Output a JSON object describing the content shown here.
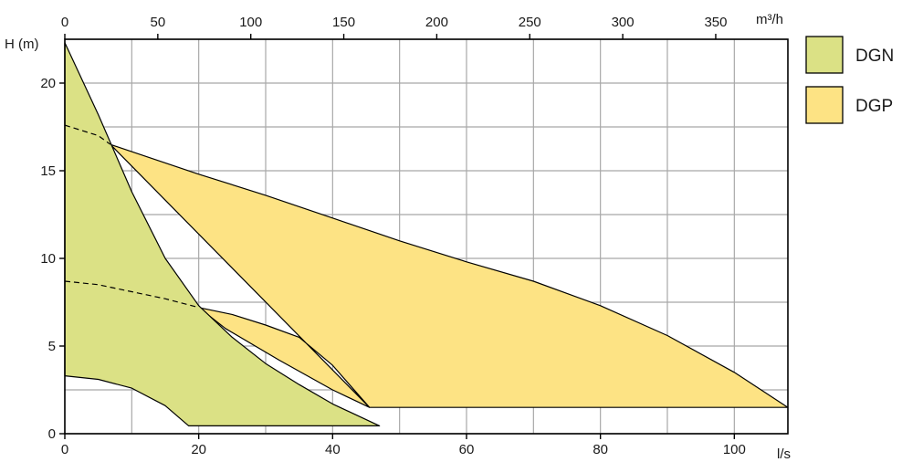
{
  "chart_data": {
    "type": "area",
    "x_bottom": {
      "label": "l/s",
      "ticks": [
        0,
        20,
        40,
        60,
        80,
        100
      ],
      "range": [
        0,
        108
      ],
      "minor_step": 10
    },
    "x_top": {
      "label": "m³/h",
      "ticks": [
        0,
        50,
        100,
        150,
        200,
        250,
        300,
        350
      ],
      "range": [
        0,
        388.8
      ]
    },
    "y": {
      "label": "H (m)",
      "ticks": [
        0,
        5,
        10,
        15,
        20
      ],
      "range": [
        0,
        22.5
      ],
      "minor_step": 2.5
    },
    "grid": true,
    "legend_position": "right",
    "series": [
      {
        "name": "DGN",
        "color": "#dbe185",
        "envelope": [
          [
            0,
            22.3
          ],
          [
            5,
            18.2
          ],
          [
            10,
            13.8
          ],
          [
            15,
            10.0
          ],
          [
            20,
            7.3
          ],
          [
            25,
            5.5
          ],
          [
            30,
            4.0
          ],
          [
            35,
            2.8
          ],
          [
            40,
            1.7
          ],
          [
            47,
            0.45
          ],
          [
            18.5,
            0.45
          ],
          [
            15,
            1.6
          ],
          [
            10,
            2.6
          ],
          [
            5,
            3.1
          ],
          [
            0,
            3.3
          ]
        ],
        "curve_dashed": [
          [
            0,
            8.7
          ],
          [
            5,
            8.5
          ],
          [
            10,
            8.1
          ],
          [
            15,
            7.7
          ],
          [
            20,
            7.2
          ]
        ]
      },
      {
        "name": "DGP",
        "color": "#fde384",
        "envelope": [
          [
            6.8,
            16.5
          ],
          [
            20,
            14.8
          ],
          [
            30,
            13.6
          ],
          [
            40,
            12.3
          ],
          [
            50,
            11.0
          ],
          [
            60,
            9.8
          ],
          [
            70,
            8.7
          ],
          [
            80,
            7.3
          ],
          [
            90,
            5.6
          ],
          [
            100,
            3.5
          ],
          [
            108,
            1.5
          ],
          [
            45.5,
            1.5
          ],
          [
            40,
            3.9
          ],
          [
            35,
            5.5
          ],
          [
            30,
            6.2
          ],
          [
            25,
            6.8
          ],
          [
            20,
            7.2
          ],
          [
            24,
            6.0
          ],
          [
            32,
            4.2
          ],
          [
            40,
            2.5
          ],
          [
            45.5,
            1.5
          ],
          [
            45.5,
            1.5
          ]
        ],
        "curve_dashed": [
          [
            0,
            17.6
          ],
          [
            5,
            17.0
          ],
          [
            6.8,
            16.5
          ]
        ]
      }
    ]
  }
}
